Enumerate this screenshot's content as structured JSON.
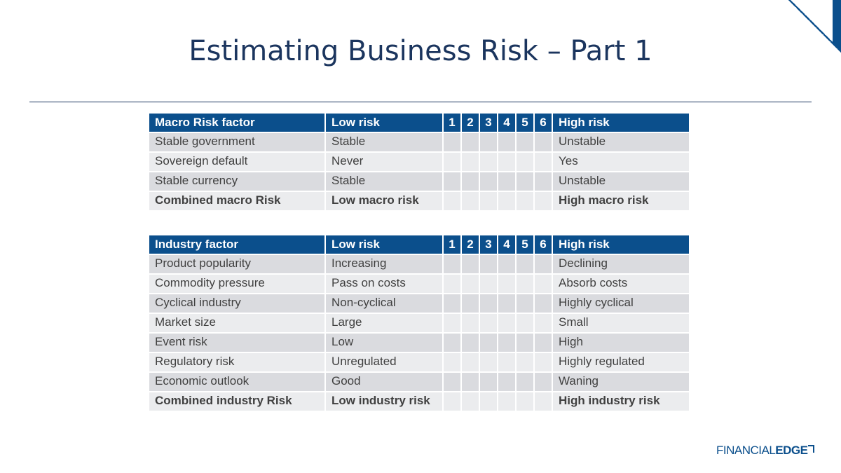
{
  "title": "Estimating Business Risk – Part 1",
  "colors": {
    "header_bg": "#0b4f8c",
    "title": "#1b355e",
    "row_odd": "#dadbdf",
    "row_even": "#ebecee"
  },
  "macro_table": {
    "headers": {
      "factor": "Macro Risk factor",
      "low": "Low risk",
      "scale": [
        "1",
        "2",
        "3",
        "4",
        "5",
        "6"
      ],
      "high": "High risk"
    },
    "rows": [
      {
        "factor": "Stable government",
        "low": "Stable",
        "high": "Unstable"
      },
      {
        "factor": "Sovereign default",
        "low": "Never",
        "high": "Yes"
      },
      {
        "factor": "Stable currency",
        "low": "Stable",
        "high": "Unstable"
      },
      {
        "factor": "Combined macro Risk",
        "low": "Low macro risk",
        "high": "High macro risk"
      }
    ]
  },
  "industry_table": {
    "headers": {
      "factor": "Industry factor",
      "low": "Low risk",
      "scale": [
        "1",
        "2",
        "3",
        "4",
        "5",
        "6"
      ],
      "high": "High risk"
    },
    "rows": [
      {
        "factor": "Product popularity",
        "low": "Increasing",
        "high": "Declining"
      },
      {
        "factor": "Commodity pressure",
        "low": "Pass on costs",
        "high": "Absorb costs"
      },
      {
        "factor": "Cyclical industry",
        "low": "Non-cyclical",
        "high": "Highly cyclical"
      },
      {
        "factor": "Market size",
        "low": "Large",
        "high": "Small"
      },
      {
        "factor": "Event risk",
        "low": "Low",
        "high": "High"
      },
      {
        "factor": "Regulatory risk",
        "low": "Unregulated",
        "high": "Highly regulated"
      },
      {
        "factor": "Economic outlook",
        "low": "Good",
        "high": "Waning"
      },
      {
        "factor": "Combined industry Risk",
        "low": "Low industry risk",
        "high": "High industry risk"
      }
    ]
  },
  "logo": {
    "part1": "FINANCIAL",
    "part2": "EDGE"
  }
}
